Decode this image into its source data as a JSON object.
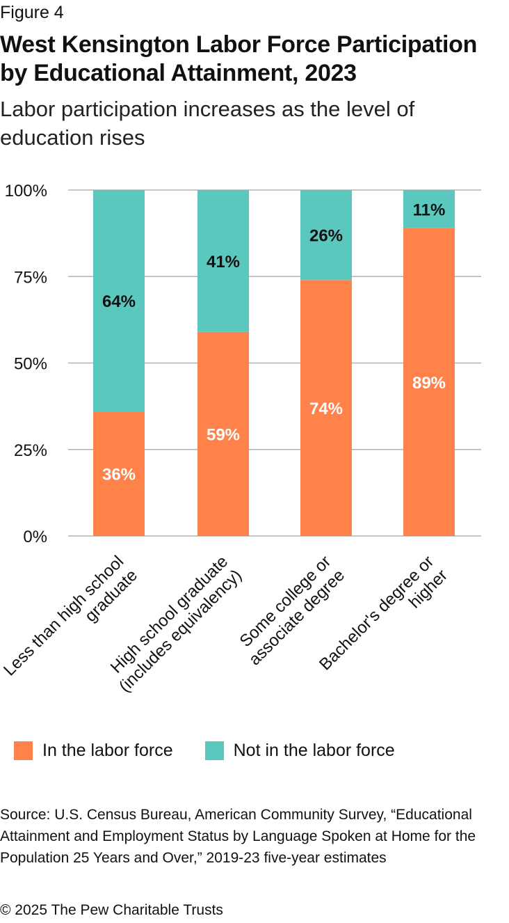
{
  "figure_label": "Figure 4",
  "colors": {
    "in_labor_force": "#ff824b",
    "not_in_labor_force": "#5ac8be",
    "grid": "#b3b3b3"
  },
  "chart_data": {
    "type": "bar",
    "stacked": true,
    "title": "West Kensington Labor Force Participation by Educational Attainment, 2023",
    "subtitle": "Labor participation increases as the level of education rises",
    "categories": [
      [
        "Less than high school",
        "graduate"
      ],
      [
        "High school graduate",
        "(includes equivalency)"
      ],
      [
        "Some college or",
        "associate degree"
      ],
      [
        "Bachelor's degree or",
        "higher"
      ]
    ],
    "series": [
      {
        "name": "In the labor force",
        "values": [
          36,
          59,
          74,
          89
        ],
        "labels": [
          "36%",
          "59%",
          "74%",
          "89%"
        ]
      },
      {
        "name": "Not in the labor force",
        "values": [
          64,
          41,
          26,
          11
        ],
        "labels": [
          "64%",
          "41%",
          "26%",
          "11%"
        ]
      }
    ],
    "ylim": [
      0,
      100
    ],
    "yticks": [
      0,
      25,
      50,
      75,
      100
    ],
    "ytick_labels": [
      "0%",
      "25%",
      "50%",
      "75%",
      "100%"
    ],
    "grid": true,
    "legend_position": "bottom-left"
  },
  "source": "Source: U.S. Census Bureau, American Community Survey, “Educational Attainment and Employment Status by Language Spoken at Home for the Population 25 Years and Over,” 2019-23 five-year estimates",
  "copyright": "© 2025 The Pew Charitable Trusts"
}
